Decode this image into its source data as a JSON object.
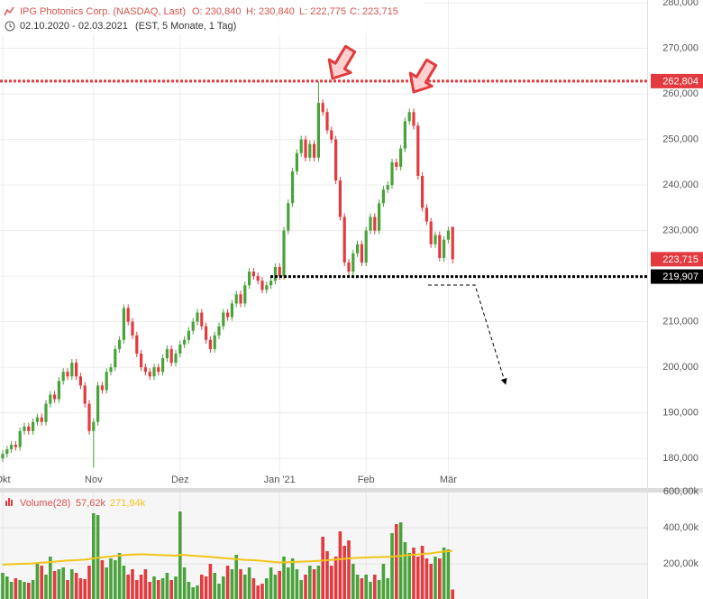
{
  "header": {
    "title": "IPG Photonics Corp. (NASDAQ, Last)",
    "ohlc": [
      "O: 230,840",
      "H: 230,840",
      "L: 222,775",
      "C: 223,715"
    ],
    "range": "02.10.2020 - 02.03.2021",
    "info": "(EST, 5 Monate, 1 Tag)"
  },
  "chart_data": [
    {
      "type": "candlestick",
      "open": [
        180000,
        181000,
        182000,
        183000,
        182500,
        186000,
        187000,
        186000,
        188000,
        189000,
        188000,
        192000,
        194000,
        193000,
        197000,
        199000,
        198000,
        201000,
        198000,
        196000,
        192000,
        186000,
        188000,
        196000,
        195000,
        199000,
        200000,
        204000,
        206000,
        213000,
        210000,
        207000,
        203000,
        200000,
        199000,
        198000,
        200000,
        199000,
        202000,
        204000,
        201000,
        203000,
        205000,
        206000,
        208000,
        210000,
        212000,
        209000,
        206000,
        204000,
        207000,
        209000,
        212000,
        211000,
        214000,
        216000,
        214000,
        218000,
        221000,
        220000,
        219000,
        217000,
        218000,
        219000,
        222000,
        220000,
        230000,
        236000,
        243000,
        247000,
        250000,
        246000,
        249000,
        246000,
        258000,
        256000,
        252000,
        250000,
        241000,
        233000,
        223000,
        221000,
        225000,
        227000,
        223000,
        230000,
        233000,
        230000,
        236000,
        239000,
        240000,
        245000,
        244000,
        248000,
        254000,
        256000,
        253000,
        242000,
        235000,
        232000,
        227000,
        229000,
        224000,
        228000,
        230840
      ],
      "high": [
        181800,
        182800,
        183800,
        183800,
        186800,
        187800,
        187800,
        188800,
        189800,
        189800,
        192800,
        194800,
        194800,
        197800,
        199800,
        199800,
        201800,
        201800,
        198800,
        196800,
        192800,
        188800,
        196800,
        196800,
        199800,
        200800,
        204800,
        206800,
        213800,
        213800,
        210800,
        207800,
        203800,
        200800,
        199800,
        200800,
        200800,
        202800,
        204800,
        204800,
        203800,
        205800,
        206800,
        208800,
        210800,
        212800,
        212800,
        209800,
        206800,
        207800,
        209800,
        212800,
        212800,
        214800,
        216800,
        216800,
        218800,
        221800,
        221800,
        220800,
        219800,
        218800,
        219800,
        222800,
        222800,
        230800,
        236800,
        243800,
        247800,
        250800,
        250800,
        249800,
        249800,
        262804,
        258800,
        256800,
        252800,
        250800,
        241800,
        233800,
        223800,
        225800,
        227800,
        227800,
        230800,
        233800,
        233800,
        236800,
        239800,
        240800,
        245800,
        245800,
        248800,
        254800,
        256800,
        256800,
        253800,
        242800,
        235800,
        232800,
        229800,
        229800,
        228800,
        230800,
        230840
      ],
      "low": [
        179200,
        180200,
        181200,
        181700,
        181700,
        185200,
        185200,
        185200,
        187200,
        187200,
        187200,
        191200,
        192200,
        192200,
        196200,
        197200,
        197200,
        197200,
        195200,
        191200,
        185200,
        178000,
        187200,
        194200,
        194200,
        198200,
        199200,
        203200,
        205200,
        209200,
        206200,
        202200,
        199200,
        198200,
        197200,
        197200,
        198200,
        198200,
        201200,
        200200,
        200200,
        202200,
        204200,
        205200,
        207200,
        209200,
        208200,
        205200,
        203200,
        203200,
        206200,
        208200,
        210200,
        210200,
        213200,
        213200,
        213200,
        217200,
        219200,
        218200,
        216200,
        216200,
        217200,
        218200,
        219200,
        219200,
        229200,
        235200,
        242200,
        246200,
        245200,
        245200,
        245200,
        245200,
        255200,
        251200,
        249200,
        240200,
        232200,
        222200,
        219907,
        220200,
        224200,
        222200,
        222200,
        229200,
        229200,
        229200,
        235200,
        238200,
        239200,
        243200,
        243200,
        247200,
        253200,
        252200,
        241200,
        234200,
        231200,
        226200,
        226200,
        223200,
        223200,
        227200,
        222775
      ],
      "close": [
        181000,
        182000,
        183000,
        182500,
        186000,
        187000,
        186000,
        188000,
        189000,
        188000,
        192000,
        194000,
        193000,
        197000,
        199000,
        198000,
        201000,
        198000,
        196000,
        192000,
        186000,
        188000,
        196000,
        195000,
        199000,
        200000,
        204000,
        206000,
        213000,
        210000,
        207000,
        203000,
        200000,
        199000,
        198000,
        200000,
        199000,
        202000,
        204000,
        201000,
        203000,
        205000,
        206000,
        208000,
        210000,
        212000,
        209000,
        206000,
        204000,
        207000,
        209000,
        212000,
        211000,
        214000,
        216000,
        214000,
        218000,
        221000,
        220000,
        219000,
        217000,
        218000,
        219000,
        222000,
        220000,
        230000,
        236000,
        243000,
        247000,
        250000,
        246000,
        249000,
        246000,
        258000,
        256000,
        252000,
        250000,
        241000,
        233000,
        223000,
        221000,
        225000,
        227000,
        223000,
        230000,
        233000,
        230000,
        236000,
        239000,
        240000,
        245000,
        244000,
        248000,
        254000,
        256000,
        253000,
        242000,
        235000,
        232000,
        227000,
        229000,
        224000,
        228000,
        230000,
        223715
      ],
      "up_color": "#4aa23b",
      "down_color": "#e23a3e",
      "ylim": [
        173500,
        280600
      ],
      "yticks": [
        {
          "value": 180000,
          "label": "180,000"
        },
        {
          "value": 190000,
          "label": "190,000"
        },
        {
          "value": 200000,
          "label": "200,000"
        },
        {
          "value": 210000,
          "label": "210,000"
        },
        {
          "value": 220000,
          "label": "220,000"
        },
        {
          "value": 230000,
          "label": "230,000"
        },
        {
          "value": 240000,
          "label": "240,000"
        },
        {
          "value": 250000,
          "label": "250,000"
        },
        {
          "value": 260000,
          "label": "260,000"
        },
        {
          "value": 270000,
          "label": "270,000"
        },
        {
          "value": 280000,
          "label": "280,000"
        }
      ],
      "xticks": [
        {
          "value": 0,
          "label": "Okt"
        },
        {
          "value": 21,
          "label": "Nov"
        },
        {
          "value": 41,
          "label": "Dez"
        },
        {
          "value": 64,
          "label": "Jan '21"
        },
        {
          "value": 84,
          "label": "Feb"
        },
        {
          "value": 103,
          "label": "Mär"
        }
      ],
      "grid": true,
      "levels": [
        {
          "value": 262804,
          "label": "262,804",
          "color": "#e23a3e"
        },
        {
          "value": 219907,
          "label": "219,907",
          "color": "#000000"
        }
      ],
      "last_price": {
        "value": 223715,
        "label": "223,715",
        "color": "#e23a3e"
      }
    },
    {
      "type": "bar",
      "name": "Volume(28)",
      "values": [
        150000,
        130000,
        100000,
        120000,
        110000,
        100000,
        95000,
        110000,
        210000,
        190000,
        140000,
        240000,
        160000,
        170000,
        180000,
        110000,
        170000,
        150000,
        120000,
        115000,
        190000,
        480000,
        470000,
        220000,
        180000,
        230000,
        220000,
        260000,
        190000,
        140000,
        170000,
        110000,
        140000,
        170000,
        100000,
        130000,
        110000,
        120000,
        150000,
        110000,
        130000,
        490000,
        180000,
        100000,
        70000,
        80000,
        140000,
        130000,
        200000,
        150000,
        90000,
        130000,
        190000,
        170000,
        250000,
        170000,
        140000,
        180000,
        120000,
        80000,
        90000,
        120000,
        180000,
        140000,
        160000,
        240000,
        180000,
        230000,
        170000,
        110000,
        140000,
        190000,
        170000,
        190000,
        350000,
        270000,
        190000,
        240000,
        380000,
        300000,
        330000,
        200000,
        140000,
        120000,
        140000,
        100000,
        140000,
        110000,
        200000,
        120000,
        370000,
        420000,
        430000,
        320000,
        260000,
        290000,
        240000,
        300000,
        230000,
        200000,
        240000,
        230000,
        290000,
        280000,
        57620
      ],
      "value_label": "57,62k",
      "ma": [
        195000,
        197000,
        198000,
        199000,
        200000,
        200000,
        201000,
        202000,
        205000,
        207000,
        208000,
        210000,
        212000,
        214000,
        216000,
        218000,
        219000,
        220000,
        222000,
        223000,
        226000,
        230000,
        234000,
        236000,
        238000,
        240000,
        243000,
        246000,
        248000,
        250000,
        251000,
        252000,
        253000,
        252000,
        251000,
        250000,
        249000,
        248000,
        247000,
        246000,
        245000,
        250000,
        249000,
        247000,
        245000,
        243000,
        242000,
        240000,
        238000,
        236000,
        234000,
        232000,
        230000,
        228000,
        226000,
        224000,
        222000,
        221000,
        220000,
        218000,
        216000,
        214000,
        212000,
        210000,
        208000,
        208000,
        209000,
        210000,
        211000,
        212000,
        213000,
        214000,
        215000,
        216000,
        218000,
        220000,
        222000,
        224000,
        226000,
        228000,
        230000,
        232000,
        233000,
        234000,
        235000,
        236000,
        237000,
        237000,
        238000,
        238000,
        240000,
        242000,
        244000,
        246000,
        248000,
        250000,
        252000,
        254000,
        256000,
        258000,
        262000,
        265000,
        268000,
        270000,
        271940
      ],
      "ma_label": "271,94k",
      "ma_color": "#f2c418",
      "ylim": [
        0,
        600000
      ],
      "yticks": [
        {
          "value": 200000,
          "label": "200,00k"
        },
        {
          "value": 400000,
          "label": "400,00k"
        },
        {
          "value": 600000,
          "label": "600,00k"
        }
      ]
    }
  ]
}
